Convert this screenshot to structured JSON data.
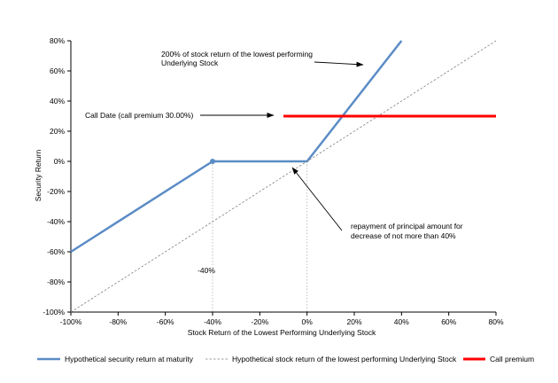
{
  "chart_data": {
    "type": "line",
    "xlabel": "Stock Return of the Lowest Performing Underlying Stock",
    "ylabel": "Security Return",
    "xlim": [
      -100,
      80
    ],
    "ylim": [
      -100,
      80
    ],
    "x_ticks": [
      "-100%",
      "-80%",
      "-60%",
      "-40%",
      "-20%",
      "0%",
      "20%",
      "40%",
      "60%",
      "80%"
    ],
    "y_ticks": [
      "80%",
      "60%",
      "40%",
      "20%",
      "0%",
      "-20%",
      "-40%",
      "-60%",
      "-80%",
      "-100%"
    ],
    "grid": false,
    "legend_position": "bottom",
    "series": [
      {
        "name": "Hypothetical security return at maturity",
        "color": "#5b8cc6",
        "style": "solid",
        "points": [
          [
            -100,
            -60
          ],
          [
            -40,
            0
          ],
          [
            0,
            0
          ],
          [
            40,
            80
          ]
        ]
      },
      {
        "name": "Hypothetical stock return of the lowest performing Underlying Stock",
        "color": "#808080",
        "style": "dashed",
        "points": [
          [
            -100,
            -100
          ],
          [
            80,
            80
          ]
        ]
      },
      {
        "name": "Call premium",
        "color": "#ff0000",
        "style": "solid",
        "points": [
          [
            -10,
            30
          ],
          [
            80,
            30
          ]
        ]
      }
    ],
    "marker": {
      "x": -40,
      "y": 0
    },
    "reference_lines_x": [
      -40,
      0
    ],
    "annotations": {
      "growth": [
        "200% of stock return of the lowest performing",
        "Underlying Stock"
      ],
      "call_date": "Call Date (call premium 30.00%)",
      "repayment": [
        "repayment of principal amount for",
        "decrease of not more than 40%"
      ],
      "threshold": "-40%"
    }
  }
}
